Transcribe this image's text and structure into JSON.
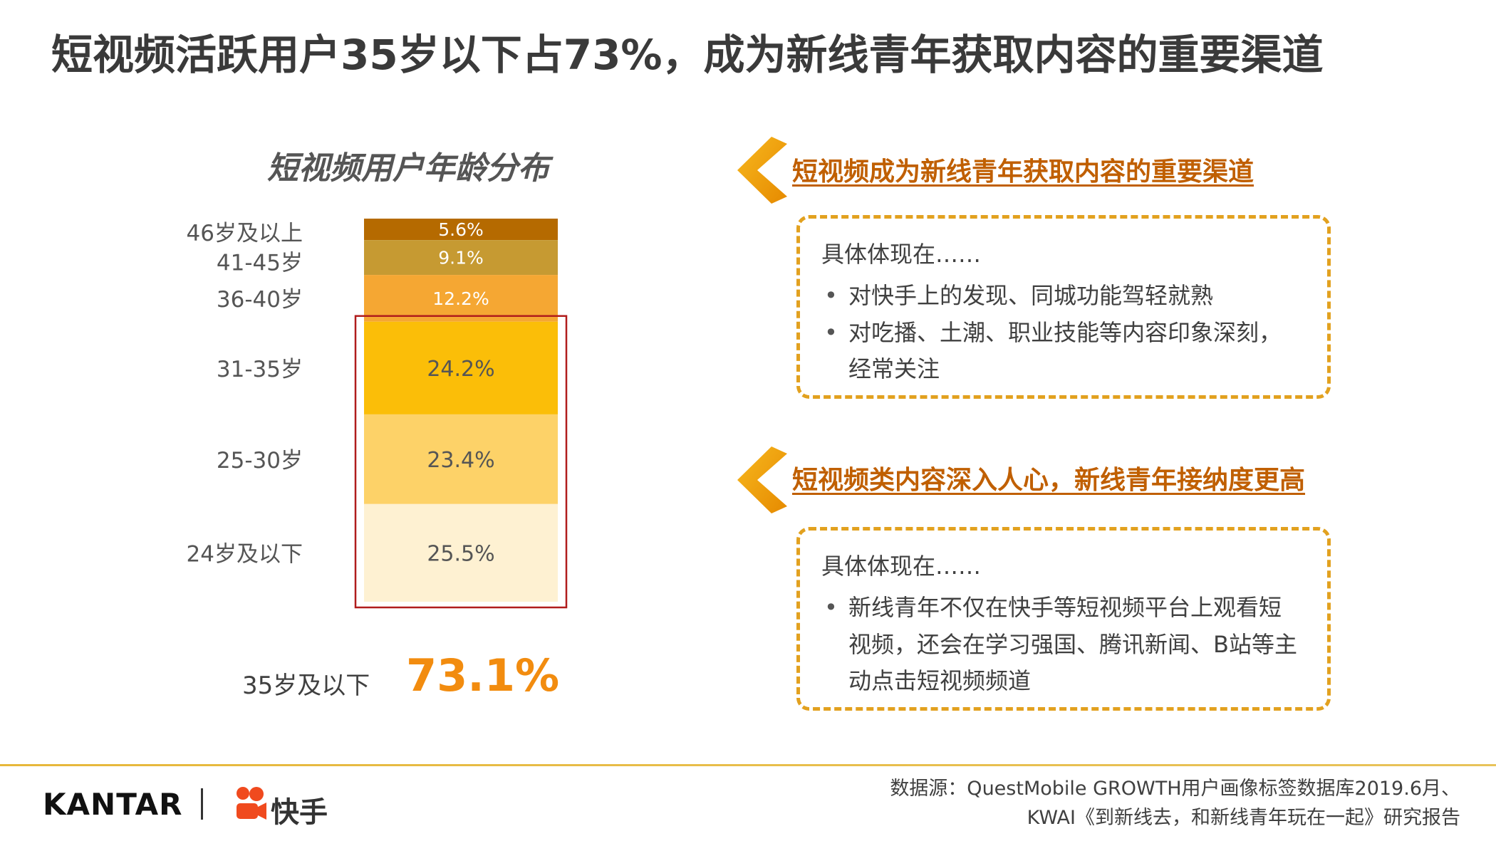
{
  "page_title": "短视频活跃用户35岁以下占73%，成为新线青年获取内容的重要渠道",
  "chart_data": {
    "type": "bar",
    "stacked": true,
    "title": "短视频用户年龄分布",
    "categories": [
      "46岁及以上",
      "41-45岁",
      "36-40岁",
      "31-35岁",
      "25-30岁",
      "24岁及以下"
    ],
    "values": [
      5.6,
      9.1,
      12.2,
      24.2,
      23.4,
      25.5
    ],
    "labels": [
      "5.6%",
      "9.1%",
      "12.2%",
      "24.2%",
      "23.4%",
      "25.5%"
    ],
    "colors": [
      "#b56a00",
      "#c69a32",
      "#f5a733",
      "#fbbe08",
      "#fdd268",
      "#fef1d2"
    ],
    "label_colors": [
      "#ffffff",
      "#ffffff",
      "#ffffff",
      "#555555",
      "#555555",
      "#555555"
    ],
    "highlight": {
      "from_index": 3,
      "to_index": 5,
      "color": "#b01c1c"
    }
  },
  "summary": {
    "label": "35岁及以下",
    "value": "73.1%"
  },
  "sections": [
    {
      "heading": "短视频成为新线青年获取内容的重要渠道",
      "lead": "具体体现在……",
      "bullets": [
        "对快手上的发现、同城功能驾轻就熟",
        "对吃播、土潮、职业技能等内容印象深刻，经常关注"
      ]
    },
    {
      "heading": "短视频类内容深入人心，新线青年接纳度更高",
      "lead": "具体体现在……",
      "bullets": [
        "新线青年不仅在快手等短视频平台上观看短视频，还会在学习强国、腾讯新闻、B站等主动点击短视频频道"
      ]
    }
  ],
  "footer": {
    "kantar_logo": "KANTAR",
    "kuaishou_logo": "快手",
    "source_line1": "数据源：QuestMobile GROWTH用户画像标签数据库2019.6月、",
    "source_line2": "KWAI《到新线去，和新线青年玩在一起》研究报告"
  },
  "accent_colors": {
    "heading": "#c05f00",
    "box_border": "#e2a11f",
    "chevron": "#f2a20f",
    "summary": "#f28c0f"
  }
}
